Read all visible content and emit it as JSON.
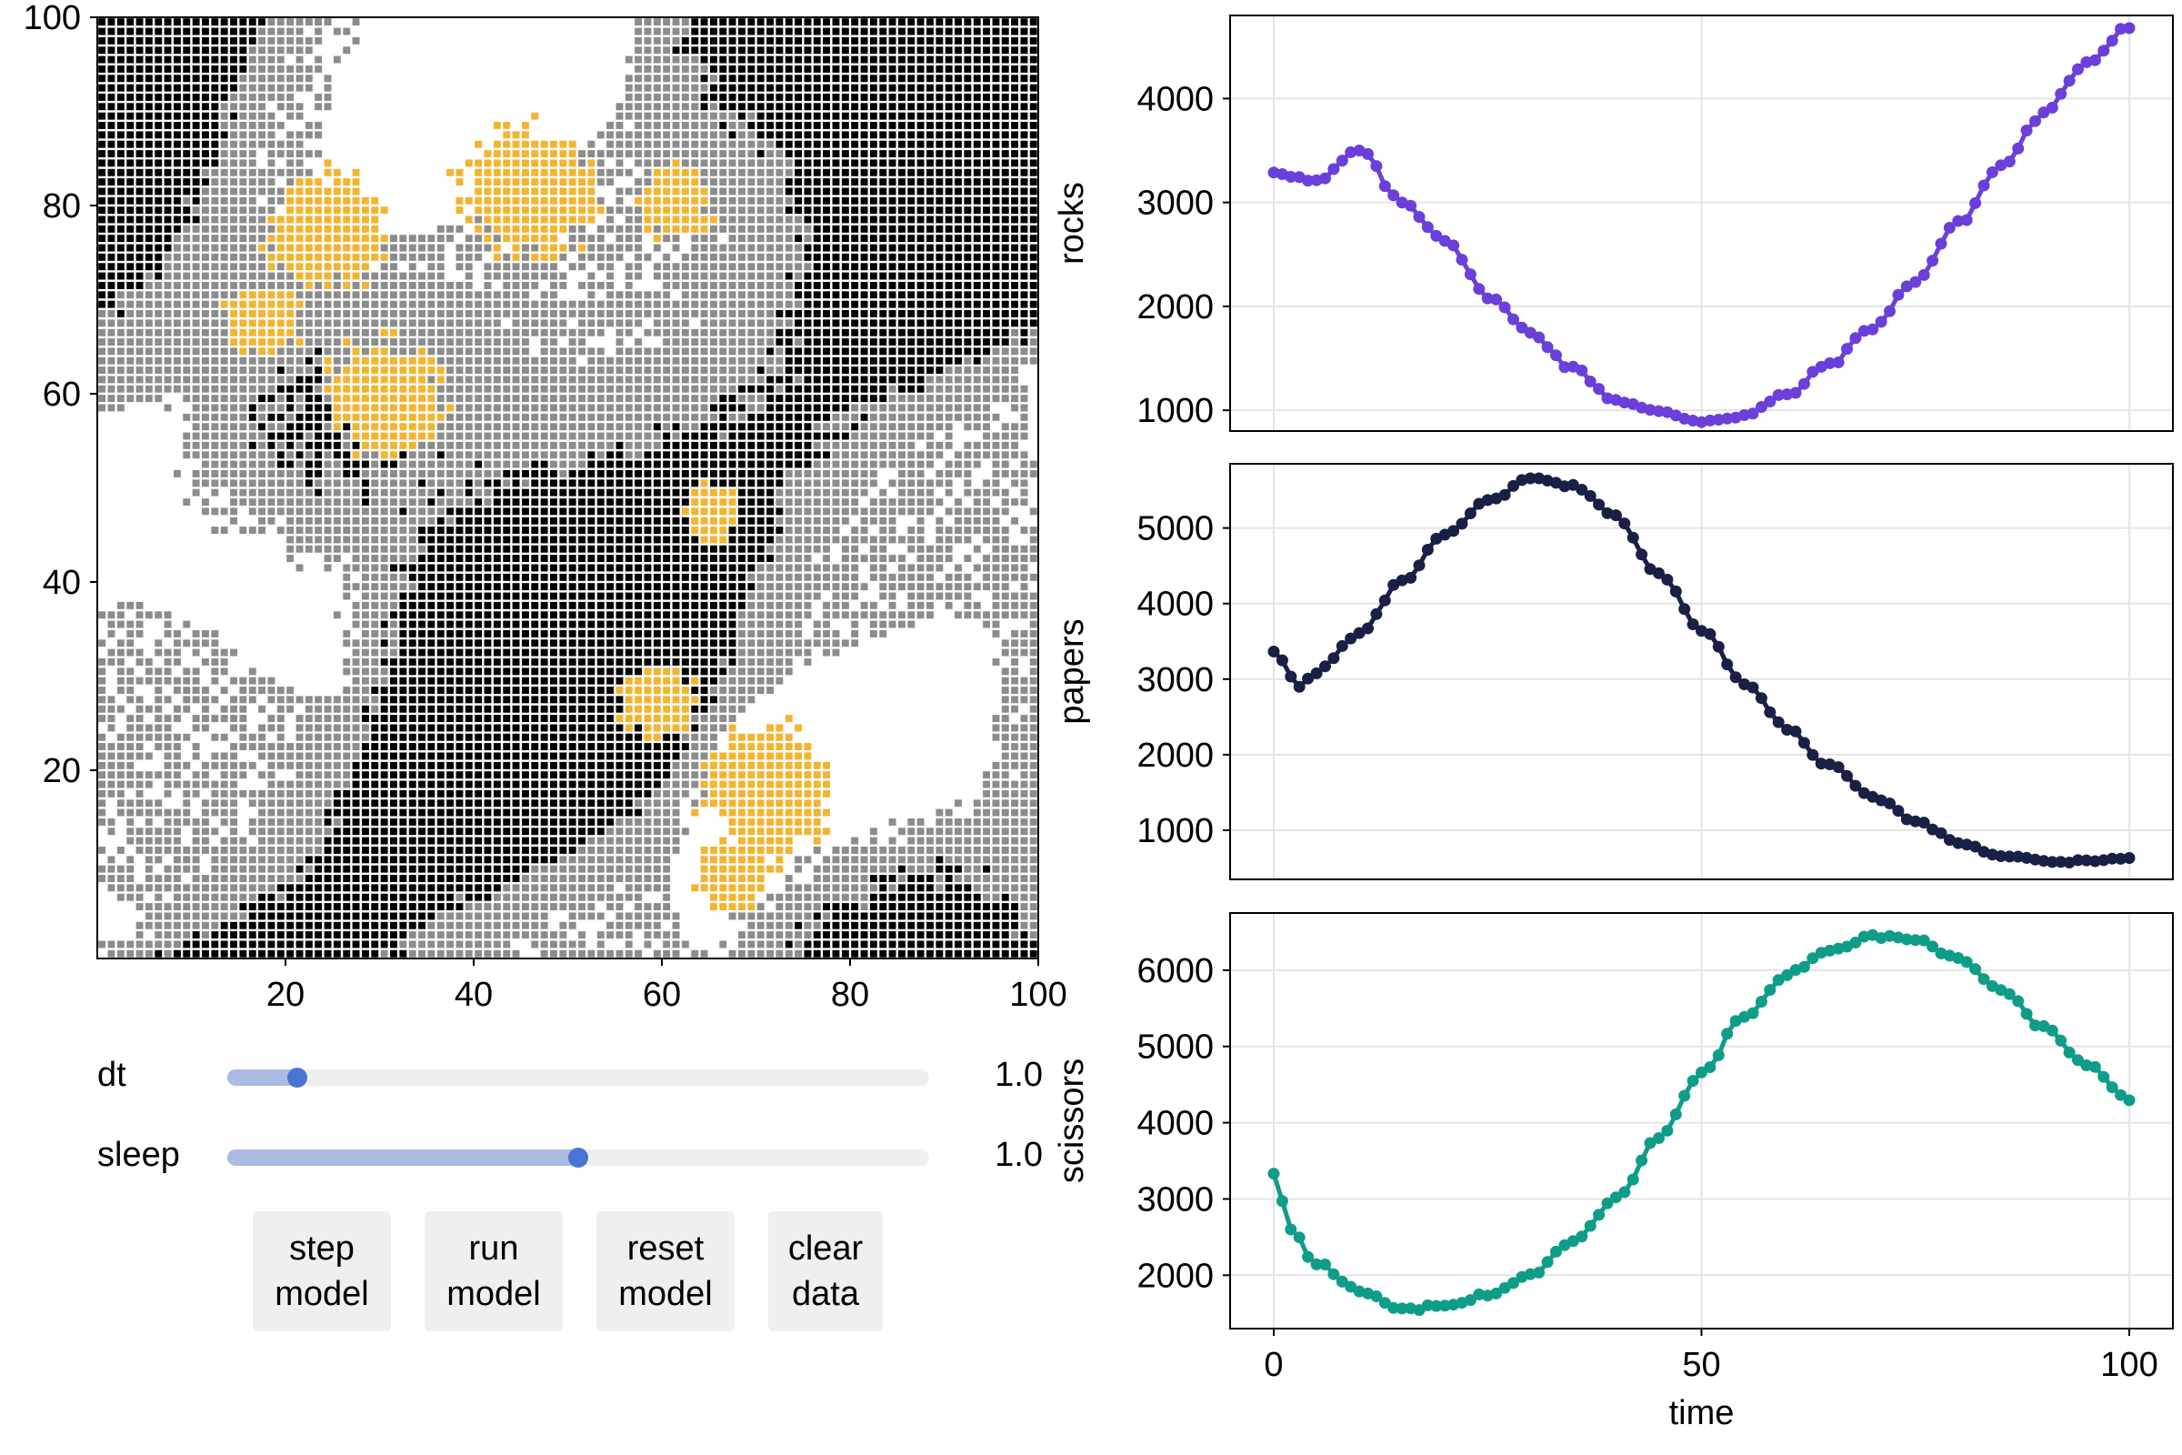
{
  "grid": {
    "x_ticks": [
      "20",
      "40",
      "60",
      "80",
      "100"
    ],
    "y_ticks": [
      "20",
      "40",
      "60",
      "80",
      "100"
    ],
    "size": 100,
    "colors": {
      "rock": "#000000",
      "paper": "#8c8c8c",
      "scissors": "#ffffff",
      "highlight": "#f3b431"
    }
  },
  "controls": {
    "dt": {
      "label": "dt",
      "value": "1.0",
      "fraction": 0.1
    },
    "sleep": {
      "label": "sleep",
      "value": "1.0",
      "fraction": 0.5
    },
    "buttons": [
      {
        "name": "step-model-button",
        "label": "step\nmodel"
      },
      {
        "name": "run-model-button",
        "label": "run\nmodel"
      },
      {
        "name": "reset-model-button",
        "label": "reset\nmodel"
      },
      {
        "name": "clear-data-button",
        "label": "clear\ndata"
      }
    ]
  },
  "chart_data": [
    {
      "type": "line",
      "ylabel": "rocks",
      "color": "#6b3fd9",
      "xlim": [
        0,
        100
      ],
      "yticks": [
        1000,
        2000,
        3000,
        4000
      ],
      "ylim": [
        800,
        4800
      ],
      "x": [
        0,
        5,
        10,
        15,
        20,
        25,
        30,
        35,
        40,
        45,
        50,
        55,
        60,
        65,
        70,
        75,
        80,
        85,
        90,
        95,
        100
      ],
      "values": [
        3300,
        3200,
        3500,
        3000,
        2650,
        2100,
        1750,
        1400,
        1100,
        980,
        900,
        950,
        1150,
        1450,
        1800,
        2250,
        2800,
        3350,
        3850,
        4350,
        4700
      ]
    },
    {
      "type": "line",
      "ylabel": "papers",
      "color": "#1a1f45",
      "xlim": [
        0,
        100
      ],
      "yticks": [
        1000,
        2000,
        3000,
        4000,
        5000
      ],
      "ylim": [
        350,
        5850
      ],
      "x": [
        0,
        3,
        5,
        10,
        15,
        20,
        25,
        30,
        35,
        40,
        45,
        50,
        55,
        60,
        65,
        70,
        75,
        80,
        85,
        90,
        95,
        100
      ],
      "values": [
        3380,
        2900,
        3100,
        3600,
        4300,
        4900,
        5350,
        5650,
        5550,
        5150,
        4400,
        3650,
        2950,
        2350,
        1850,
        1450,
        1120,
        850,
        680,
        600,
        580,
        620
      ]
    },
    {
      "type": "line",
      "ylabel": "scissors",
      "xlabel": "time",
      "color": "#0f9d88",
      "xlim": [
        0,
        100
      ],
      "xticks": [
        0,
        50,
        100
      ],
      "yticks": [
        2000,
        3000,
        4000,
        5000,
        6000
      ],
      "ylim": [
        1300,
        6750
      ],
      "x": [
        0,
        2,
        5,
        10,
        15,
        20,
        25,
        30,
        35,
        40,
        45,
        50,
        55,
        60,
        65,
        70,
        75,
        80,
        85,
        90,
        95,
        100
      ],
      "values": [
        3350,
        2600,
        2150,
        1800,
        1550,
        1600,
        1750,
        2000,
        2450,
        3000,
        3800,
        4650,
        5400,
        5950,
        6250,
        6450,
        6400,
        6150,
        5750,
        5250,
        4750,
        4300
      ]
    }
  ]
}
